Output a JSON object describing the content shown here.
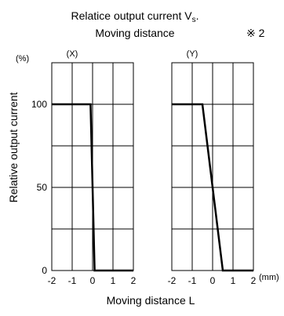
{
  "figure": {
    "title_line1": "Relatice output current V",
    "title_subscript": "s",
    "title_suffix": ".",
    "title_line2": "Moving distance",
    "note_mark": "※ 2",
    "y_unit": "(%)",
    "x_unit": "(mm)",
    "ylabel": "Relative output current",
    "xlabel": "Moving distance L"
  },
  "chart_data": [
    {
      "type": "line",
      "panel_label": "(X)",
      "x_ticks": [
        "-2",
        "-1",
        "0",
        "1",
        "2"
      ],
      "y_ticks": [
        "0",
        "50",
        "100"
      ],
      "xlim": [
        -2,
        2
      ],
      "ylim": [
        0,
        125
      ],
      "grid": true,
      "series": [
        {
          "x": [
            -2,
            -0.1,
            0.1,
            2
          ],
          "y": [
            100,
            100,
            0,
            0
          ],
          "color": "#000000"
        }
      ]
    },
    {
      "type": "line",
      "panel_label": "(Y)",
      "x_ticks": [
        "-2",
        "-1",
        "0",
        "1",
        "2"
      ],
      "y_ticks": [
        "0",
        "50",
        "100"
      ],
      "xlim": [
        -2,
        2
      ],
      "ylim": [
        0,
        125
      ],
      "grid": true,
      "series": [
        {
          "x": [
            -2,
            -0.5,
            0.5,
            2
          ],
          "y": [
            100,
            100,
            0,
            0
          ],
          "color": "#000000"
        }
      ]
    }
  ]
}
